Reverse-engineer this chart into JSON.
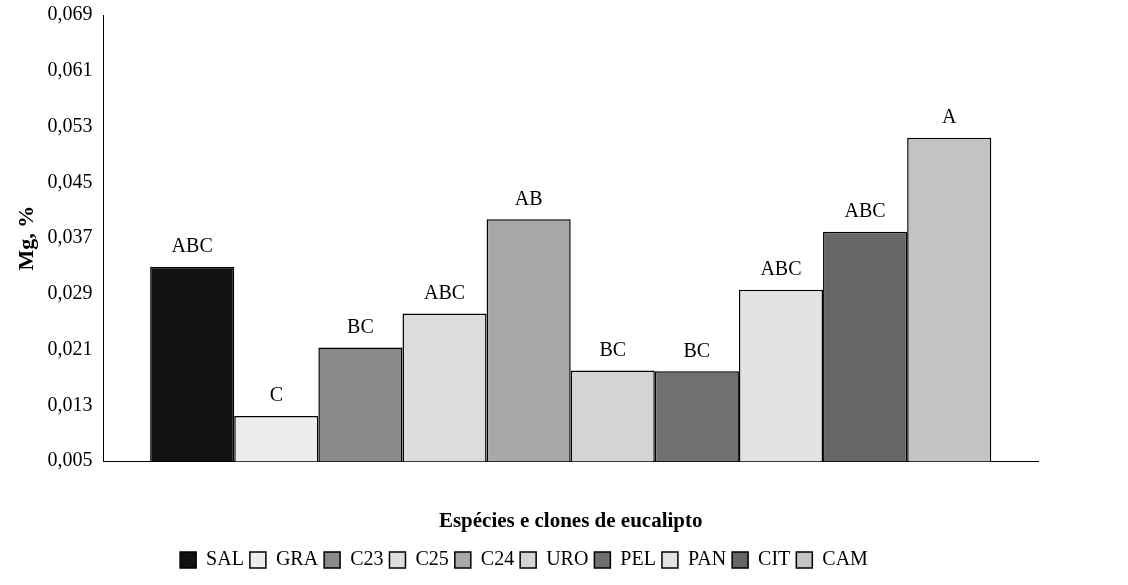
{
  "chart_data": {
    "type": "bar",
    "xlabel": "Espécies e clones de eucalipto",
    "ylabel": "Mg, %",
    "categories": [
      null
    ],
    "series": [
      {
        "name": "SAL",
        "color": "#111111",
        "values": [
          0.0329
        ],
        "value_labels": [
          "ABC"
        ]
      },
      {
        "name": "GRA",
        "color": "#ececec",
        "values": [
          0.0115
        ],
        "value_labels": [
          "C"
        ]
      },
      {
        "name": "C23",
        "color": "#8a8a8a",
        "values": [
          0.0213
        ],
        "value_labels": [
          "BC"
        ]
      },
      {
        "name": "C25",
        "color": "#dcdcdc",
        "values": [
          0.0262
        ],
        "value_labels": [
          "ABC"
        ]
      },
      {
        "name": "C24",
        "color": "#a8a8a8",
        "values": [
          0.0397
        ],
        "value_labels": [
          "AB"
        ]
      },
      {
        "name": "URO",
        "color": "#d4d4d4",
        "values": [
          0.018
        ],
        "value_labels": [
          "BC"
        ]
      },
      {
        "name": "PEL",
        "color": "#707070",
        "values": [
          0.0179
        ],
        "value_labels": [
          "BC"
        ]
      },
      {
        "name": "PAN",
        "color": "#e2e2e2",
        "values": [
          0.0296
        ],
        "value_labels": [
          "ABC"
        ]
      },
      {
        "name": "CIT",
        "color": "#666666",
        "values": [
          0.0379
        ],
        "value_labels": [
          "ABC"
        ]
      },
      {
        "name": "CAM",
        "color": "#c4c4c4",
        "values": [
          0.0514
        ],
        "value_labels": [
          "A"
        ]
      }
    ],
    "ylim": [
      0.005,
      0.069
    ],
    "yticks": [
      {
        "value": 0.005,
        "label": "0,005"
      },
      {
        "value": 0.013,
        "label": "0,013"
      },
      {
        "value": 0.021,
        "label": "0,021"
      },
      {
        "value": 0.029,
        "label": "0,029"
      },
      {
        "value": 0.037,
        "label": "0,037"
      },
      {
        "value": 0.045,
        "label": "0,045"
      },
      {
        "value": 0.053,
        "label": "0,053"
      },
      {
        "value": 0.061,
        "label": "0,061"
      },
      {
        "value": 0.069,
        "label": "0,069"
      }
    ],
    "grid": false,
    "legend": "bottom"
  }
}
